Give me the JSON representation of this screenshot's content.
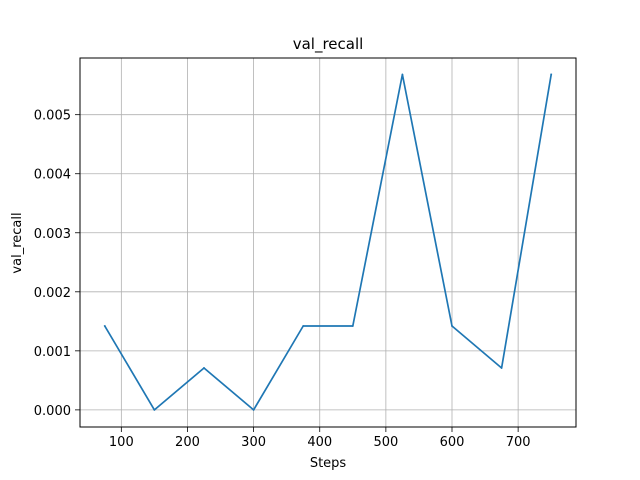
{
  "chart_data": {
    "type": "line",
    "title": "val_recall",
    "xlabel": "Steps",
    "ylabel": "val_recall",
    "grid": true,
    "xlim": [
      37.5,
      787.5
    ],
    "ylim": [
      -0.00029,
      0.00596
    ],
    "x_ticks": [
      100,
      200,
      300,
      400,
      500,
      600,
      700
    ],
    "y_ticks": [
      0.0,
      0.001,
      0.002,
      0.003,
      0.004,
      0.005
    ],
    "x_tick_labels": [
      "100",
      "200",
      "300",
      "400",
      "500",
      "600",
      "700"
    ],
    "y_tick_labels": [
      "0.000",
      "0.001",
      "0.002",
      "0.003",
      "0.004",
      "0.005"
    ],
    "series": [
      {
        "color": "#1f77b4",
        "x": [
          75,
          150,
          225,
          300,
          375,
          450,
          525,
          600,
          675,
          750
        ],
        "y": [
          0.00142,
          0.0,
          0.00071,
          0.0,
          0.00142,
          0.00142,
          0.00568,
          0.00142,
          0.00071,
          0.00568
        ]
      }
    ]
  }
}
